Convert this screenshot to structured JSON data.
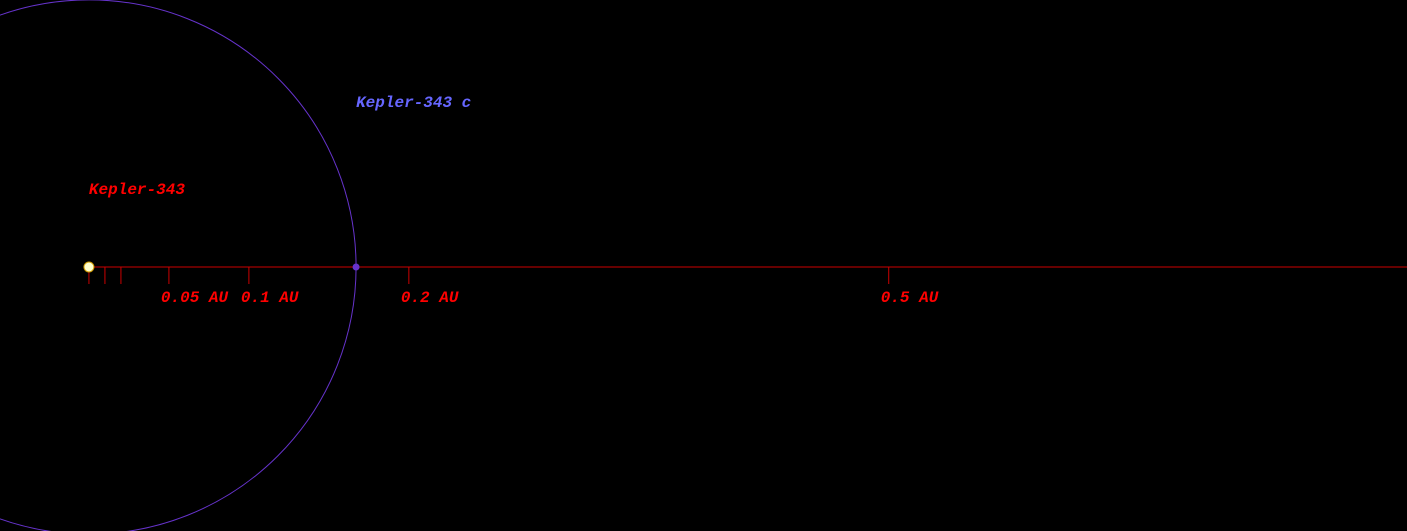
{
  "star": {
    "name": "Kepler-343",
    "color": "#ffffcc"
  },
  "planets": [
    {
      "name": "Kepler-343 c",
      "orbit_au": 0.167,
      "color": "#6633cc",
      "label_color": "#6666ff"
    }
  ],
  "scale": {
    "xlim": [
      -0.0556,
      0.824
    ],
    "color": "#ff0000",
    "line_color": "#cc0000",
    "minor_ticks": [
      0.01,
      0.02
    ],
    "ticks": [
      {
        "value": 0.05,
        "label": "0.05 AU"
      },
      {
        "value": 0.1,
        "label": "0.1 AU"
      },
      {
        "value": 0.2,
        "label": "0.2 AU"
      },
      {
        "value": 0.5,
        "label": "0.5 AU"
      }
    ]
  }
}
